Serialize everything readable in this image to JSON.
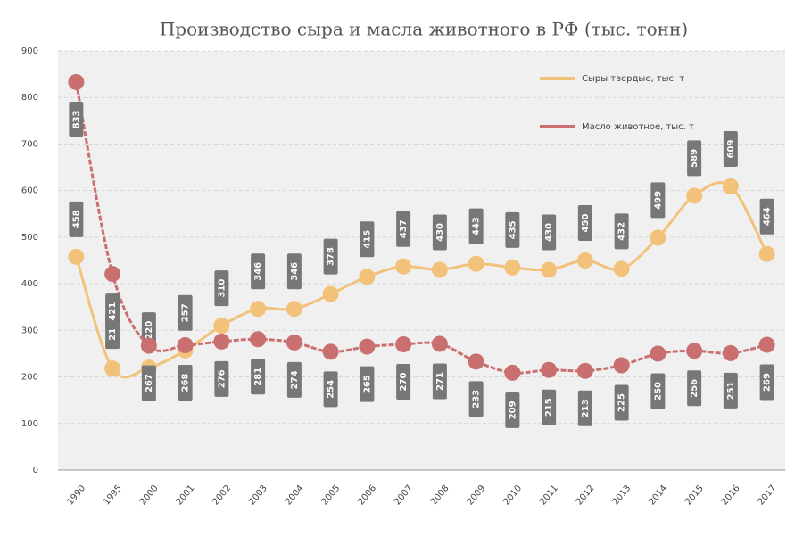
{
  "chart_data": {
    "type": "line",
    "title": "Производство сыра и масла животного в РФ (тыс. тонн)",
    "categories": [
      "1990",
      "1995",
      "2000",
      "2001",
      "2002",
      "2003",
      "2004",
      "2005",
      "2006",
      "2007",
      "2008",
      "2009",
      "2010",
      "2011",
      "2012",
      "2013",
      "2014",
      "2015",
      "2016",
      "2017"
    ],
    "series": [
      {
        "name": "Сыры твердые, тыс. т",
        "color": "#f2c27a",
        "values": [
          458,
          218,
          220,
          257,
          310,
          346,
          346,
          378,
          415,
          437,
          430,
          443,
          435,
          430,
          450,
          432,
          499,
          589,
          609,
          464
        ]
      },
      {
        "name": "Масло животное, тыс. т",
        "color": "#c96f6f",
        "values": [
          833,
          421,
          267,
          268,
          276,
          281,
          274,
          254,
          265,
          270,
          271,
          233,
          209,
          215,
          213,
          225,
          250,
          256,
          251,
          269
        ]
      }
    ],
    "ylim": [
      0,
      900
    ],
    "yticks": [
      0,
      100,
      200,
      300,
      400,
      500,
      600,
      700,
      800,
      900
    ],
    "grid": true,
    "legend": "top-right"
  }
}
